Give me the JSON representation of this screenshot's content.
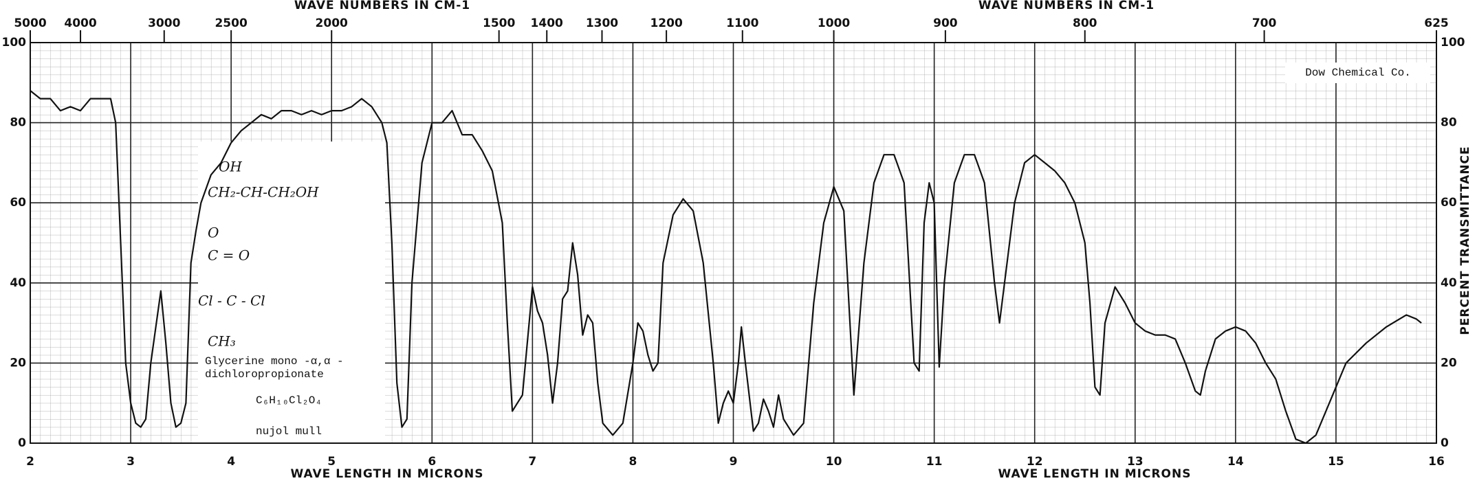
{
  "chart_data": {
    "type": "line",
    "title_top_left": "WAVE NUMBERS IN CM-1",
    "title_top_right": "WAVE NUMBERS IN CM-1",
    "xlabel_left": "WAVE LENGTH IN MICRONS",
    "xlabel_right": "WAVE LENGTH IN MICRONS",
    "ylabel": "PERCENT TRANSMITTANCE",
    "source": "Dow Chemical Co.",
    "structure": [
      "OH",
      "CH₂-CH-CH₂OH",
      "O",
      "C = O",
      "Cl - C - Cl",
      "CH₃"
    ],
    "compound": [
      "Glycerine mono -α,α -",
      "dichloropropionate"
    ],
    "formula": "C₆H₁₀Cl₂O₄",
    "medium": "nujol mull",
    "color": "#111111",
    "grid": true,
    "xlim": [
      2,
      16
    ],
    "ylim": [
      0,
      100
    ],
    "xticks": [
      2,
      3,
      4,
      5,
      6,
      7,
      8,
      9,
      10,
      11,
      12,
      13,
      14,
      15,
      16
    ],
    "yticks": [
      0,
      20,
      40,
      60,
      80,
      100
    ],
    "x2ticks": [
      5000,
      4000,
      3000,
      2500,
      2000,
      1500,
      1400,
      1300,
      1200,
      1100,
      1000,
      900,
      800,
      700,
      625
    ],
    "x": [
      2.0,
      2.1,
      2.2,
      2.3,
      2.4,
      2.5,
      2.6,
      2.7,
      2.8,
      2.85,
      2.9,
      2.95,
      3.0,
      3.05,
      3.1,
      3.15,
      3.2,
      3.3,
      3.35,
      3.4,
      3.45,
      3.5,
      3.55,
      3.6,
      3.65,
      3.7,
      3.8,
      3.9,
      4.0,
      4.1,
      4.2,
      4.3,
      4.4,
      4.5,
      4.6,
      4.7,
      4.8,
      4.9,
      5.0,
      5.1,
      5.2,
      5.3,
      5.4,
      5.5,
      5.55,
      5.6,
      5.65,
      5.7,
      5.75,
      5.8,
      5.85,
      5.9,
      6.0,
      6.1,
      6.2,
      6.3,
      6.4,
      6.5,
      6.6,
      6.7,
      6.75,
      6.8,
      6.85,
      6.9,
      7.0,
      7.05,
      7.1,
      7.15,
      7.2,
      7.25,
      7.3,
      7.35,
      7.4,
      7.45,
      7.5,
      7.55,
      7.6,
      7.65,
      7.7,
      7.8,
      7.9,
      8.0,
      8.05,
      8.1,
      8.15,
      8.2,
      8.25,
      8.3,
      8.4,
      8.5,
      8.6,
      8.7,
      8.8,
      8.85,
      8.9,
      8.95,
      9.0,
      9.05,
      9.08,
      9.12,
      9.2,
      9.25,
      9.3,
      9.35,
      9.4,
      9.45,
      9.5,
      9.6,
      9.7,
      9.8,
      9.9,
      10.0,
      10.1,
      10.2,
      10.3,
      10.4,
      10.5,
      10.6,
      10.7,
      10.8,
      10.85,
      10.9,
      10.95,
      11.0,
      11.05,
      11.1,
      11.2,
      11.3,
      11.4,
      11.5,
      11.6,
      11.65,
      11.7,
      11.8,
      11.9,
      12.0,
      12.1,
      12.2,
      12.3,
      12.4,
      12.5,
      12.55,
      12.6,
      12.65,
      12.7,
      12.8,
      12.9,
      13.0,
      13.1,
      13.2,
      13.3,
      13.4,
      13.5,
      13.6,
      13.65,
      13.7,
      13.8,
      13.9,
      14.0,
      14.1,
      14.2,
      14.3,
      14.4,
      14.5,
      14.6,
      14.7,
      14.8,
      14.9,
      15.0,
      15.1,
      15.3,
      15.5,
      15.7,
      15.8,
      15.85
    ],
    "values": [
      88,
      86,
      86,
      83,
      84,
      83,
      86,
      86,
      86,
      80,
      50,
      20,
      10,
      5,
      4,
      6,
      20,
      38,
      25,
      10,
      4,
      5,
      10,
      45,
      53,
      60,
      67,
      70,
      75,
      78,
      80,
      82,
      81,
      83,
      83,
      82,
      83,
      82,
      83,
      83,
      84,
      86,
      84,
      80,
      75,
      50,
      15,
      4,
      6,
      40,
      55,
      70,
      80,
      80,
      83,
      77,
      77,
      73,
      68,
      55,
      30,
      8,
      10,
      12,
      39,
      33,
      30,
      22,
      10,
      20,
      36,
      38,
      50,
      42,
      27,
      32,
      30,
      15,
      5,
      2,
      5,
      20,
      30,
      28,
      22,
      18,
      20,
      45,
      57,
      61,
      58,
      45,
      20,
      5,
      10,
      13,
      10,
      20,
      29,
      20,
      3,
      5,
      11,
      8,
      4,
      12,
      6,
      2,
      5,
      35,
      55,
      64,
      58,
      12,
      45,
      65,
      72,
      72,
      65,
      20,
      18,
      55,
      65,
      60,
      19,
      40,
      65,
      72,
      72,
      65,
      40,
      30,
      40,
      60,
      70,
      72,
      70,
      68,
      65,
      60,
      50,
      35,
      14,
      12,
      30,
      39,
      35,
      30,
      28,
      27,
      27,
      26,
      20,
      13,
      12,
      18,
      26,
      28,
      29,
      28,
      25,
      20,
      16,
      8,
      1,
      0,
      2,
      8,
      14,
      20,
      25,
      29,
      32,
      31,
      30
    ]
  }
}
